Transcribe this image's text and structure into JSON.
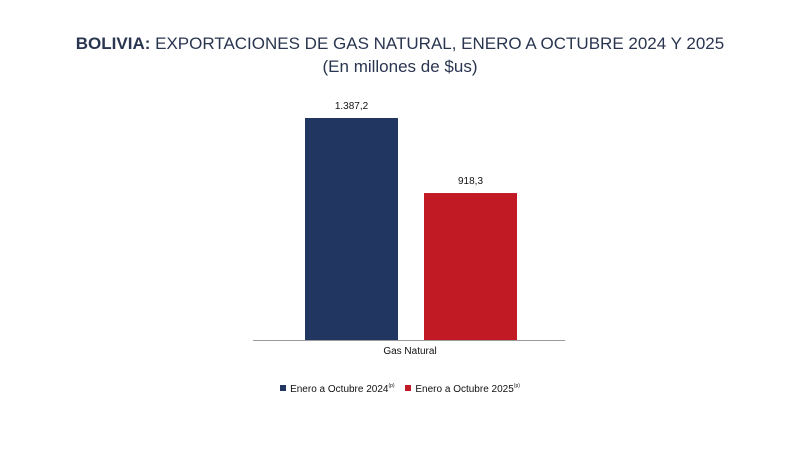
{
  "title": {
    "country": "BOLIVIA:",
    "text": " EXPORTACIONES DE GAS NATURAL, ENERO A OCTUBRE 2024 Y 2025",
    "subtitle": "(En millones de $us)"
  },
  "colors": {
    "series_2024": "#213762",
    "series_2025": "#c11a24",
    "axis": "#9a9a9a"
  },
  "chart_data": {
    "type": "bar",
    "categories": [
      "Gas Natural"
    ],
    "series": [
      {
        "name": "Enero a Octubre 2024",
        "sup": "(p)",
        "values": [
          1387.2
        ],
        "label": "1.387,2",
        "color": "#213762"
      },
      {
        "name": "Enero a Octubre  2025",
        "sup": "(p)",
        "values": [
          918.3
        ],
        "label": "918,3",
        "color": "#c11a24"
      }
    ],
    "ylim": [
      0,
      1387.2
    ],
    "legend": "bottom",
    "grid": false
  }
}
